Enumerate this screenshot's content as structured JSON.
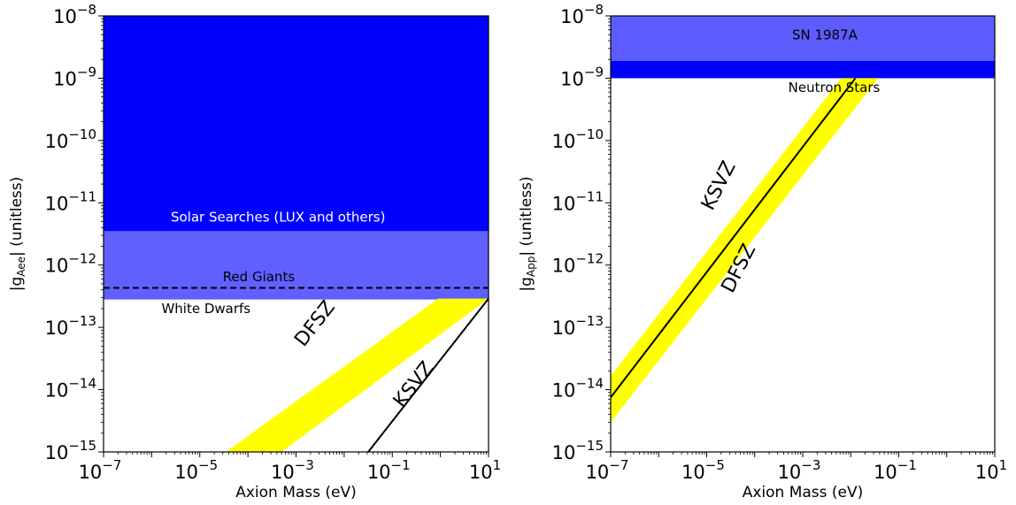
{
  "chart_data": [
    {
      "type": "area",
      "xlabel": "Axion Mass (eV)",
      "ylabel": "|g_Aee| (unitless)",
      "ylabel_parts": {
        "open": "|g",
        "sub": "Aee",
        "close": "| (unitless)"
      },
      "xscale": "log",
      "yscale": "log",
      "xlim": [
        1e-07,
        10
      ],
      "ylim": [
        1e-15,
        1e-08
      ],
      "x_ticks": [
        {
          "base": "10",
          "exp": "−7",
          "value": 1e-07
        },
        {
          "base": "10",
          "exp": "−5",
          "value": 1e-05
        },
        {
          "base": "10",
          "exp": "−3",
          "value": 0.001
        },
        {
          "base": "10",
          "exp": "−1",
          "value": 0.1
        },
        {
          "base": "10",
          "exp": "1",
          "value": 10
        }
      ],
      "y_ticks": [
        {
          "base": "10",
          "exp": "−15",
          "value": 1e-15
        },
        {
          "base": "10",
          "exp": "−14",
          "value": 1e-14
        },
        {
          "base": "10",
          "exp": "−13",
          "value": 1e-13
        },
        {
          "base": "10",
          "exp": "−12",
          "value": 1e-12
        },
        {
          "base": "10",
          "exp": "−11",
          "value": 1e-11
        },
        {
          "base": "10",
          "exp": "−10",
          "value": 1e-10
        },
        {
          "base": "10",
          "exp": "−9",
          "value": 1e-09
        },
        {
          "base": "10",
          "exp": "−8",
          "value": 1e-08
        }
      ],
      "excluded_regions": [
        {
          "name": "Solar Searches (LUX and others)",
          "y_range": [
            3.5e-12,
            1e-08
          ],
          "color": "#0000ff",
          "label_x": 2.5e-06,
          "label_y": 5e-12,
          "label_color": "#ffffff"
        },
        {
          "name": "White Dwarfs",
          "y_range": [
            2.8e-13,
            3.5e-12
          ],
          "color": "#6060ff",
          "label_x": 1.6e-06,
          "label_y": 1.7e-13,
          "label_color": "#000000"
        }
      ],
      "lines": [
        {
          "name": "Red Giants",
          "style": "dashed",
          "y": 4.3e-13,
          "color": "#000000",
          "label_x": 3e-05,
          "label_y": 5.5e-13
        },
        {
          "name": "KSVZ",
          "style": "solid",
          "x": [
            0.0316,
            10
          ],
          "y": [
            1e-15,
            2.9e-13
          ],
          "color": "#000000",
          "label_x": 0.35,
          "label_y": 1.05e-14,
          "label_angle": -52
        }
      ],
      "bands": [
        {
          "name": "DFSZ",
          "color": "#ffff00",
          "x_lower": [
            0.0005,
            10
          ],
          "x_upper": [
            3.5e-05,
            0.9
          ],
          "y_at_x": [
            1e-15,
            2.9e-13
          ],
          "label_x": 0.0031,
          "label_y": 1e-13,
          "label_angle": -52
        }
      ]
    },
    {
      "type": "area",
      "xlabel": "Axion Mass (eV)",
      "ylabel": "|g_App| (unitless)",
      "ylabel_parts": {
        "open": "|g",
        "sub": "App",
        "close": "| (unitless)"
      },
      "xscale": "log",
      "yscale": "log",
      "xlim": [
        1e-07,
        10
      ],
      "ylim": [
        1e-15,
        1e-08
      ],
      "x_ticks": [
        {
          "base": "10",
          "exp": "−7",
          "value": 1e-07
        },
        {
          "base": "10",
          "exp": "−5",
          "value": 1e-05
        },
        {
          "base": "10",
          "exp": "−3",
          "value": 0.001
        },
        {
          "base": "10",
          "exp": "−1",
          "value": 0.1
        },
        {
          "base": "10",
          "exp": "1",
          "value": 10
        }
      ],
      "y_ticks": [
        {
          "base": "10",
          "exp": "−15",
          "value": 1e-15
        },
        {
          "base": "10",
          "exp": "−14",
          "value": 1e-14
        },
        {
          "base": "10",
          "exp": "−13",
          "value": 1e-13
        },
        {
          "base": "10",
          "exp": "−12",
          "value": 1e-12
        },
        {
          "base": "10",
          "exp": "−11",
          "value": 1e-11
        },
        {
          "base": "10",
          "exp": "−10",
          "value": 1e-10
        },
        {
          "base": "10",
          "exp": "−9",
          "value": 1e-09
        },
        {
          "base": "10",
          "exp": "−8",
          "value": 1e-08
        }
      ],
      "excluded_regions": [
        {
          "name": "SN 1987A",
          "y_range": [
            1.9e-09,
            1e-08
          ],
          "color": "#5c5cff",
          "label_x": 0.0006,
          "label_y": 4.2e-09,
          "label_color": "#000000"
        },
        {
          "name": "Neutron Stars",
          "y_range": [
            1e-09,
            1.9e-09
          ],
          "color": "#0000ff",
          "label_x": 0.0005,
          "label_y": 6e-10,
          "label_color": "#000000"
        }
      ],
      "lines": [
        {
          "name": "KSVZ",
          "style": "solid",
          "x": [
            1e-07,
            0.0125
          ],
          "y": [
            7.5e-15,
            1e-09
          ],
          "color": "#000000",
          "label_x": 2.3e-05,
          "label_y": 1.7e-11,
          "label_angle": -63
        }
      ],
      "bands": [
        {
          "name": "DFSZ",
          "color": "#ffff00",
          "x": [
            1e-07,
            0.0375
          ],
          "y_lower": [
            3e-15,
            1e-09
          ],
          "y_upper": [
            1.65e-14,
            1e-09
          ],
          "x_at_ylim_lower": 0.0375,
          "x_at_ylim_upper": 0.0063,
          "label_x": 6e-05,
          "label_y": 8e-13,
          "label_angle": -63
        }
      ]
    }
  ]
}
